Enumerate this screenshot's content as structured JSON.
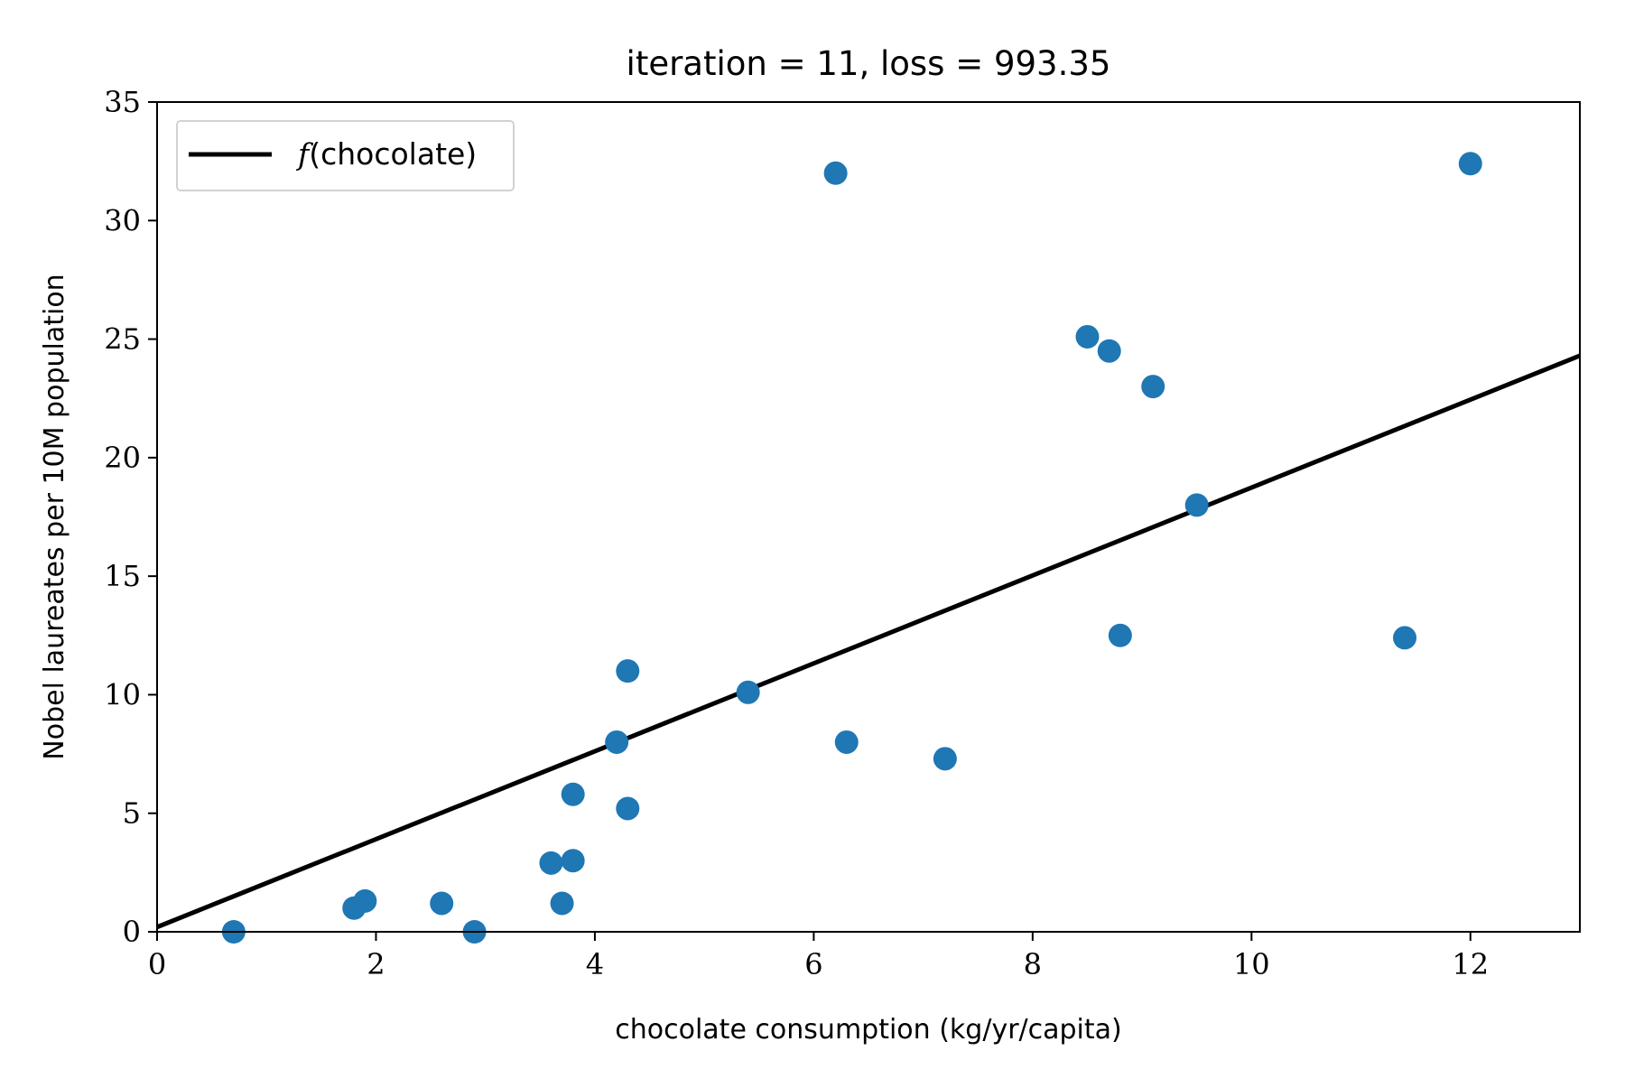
{
  "chart_data": {
    "type": "scatter",
    "title": "iteration = 11, loss = 993.35",
    "xlabel": "chocolate consumption (kg/yr/capita)",
    "ylabel": "Nobel laureates per 10M population",
    "xlim": [
      0,
      13
    ],
    "ylim": [
      0,
      35
    ],
    "xticks": [
      0,
      2,
      4,
      6,
      8,
      10,
      12
    ],
    "yticks": [
      0,
      5,
      10,
      15,
      20,
      25,
      30,
      35
    ],
    "grid": false,
    "legend_position": "top-left",
    "legend": {
      "func": "f",
      "label": "(chocolate)"
    },
    "points": [
      {
        "x": 0.7,
        "y": 0.0
      },
      {
        "x": 1.8,
        "y": 1.0
      },
      {
        "x": 1.9,
        "y": 1.3
      },
      {
        "x": 2.6,
        "y": 1.2
      },
      {
        "x": 2.9,
        "y": 0.0
      },
      {
        "x": 3.6,
        "y": 2.9
      },
      {
        "x": 3.7,
        "y": 1.2
      },
      {
        "x": 3.8,
        "y": 3.0
      },
      {
        "x": 3.8,
        "y": 5.8
      },
      {
        "x": 4.2,
        "y": 8.0
      },
      {
        "x": 4.3,
        "y": 5.2
      },
      {
        "x": 4.3,
        "y": 11.0
      },
      {
        "x": 5.4,
        "y": 10.1
      },
      {
        "x": 6.2,
        "y": 32.0
      },
      {
        "x": 6.3,
        "y": 8.0
      },
      {
        "x": 7.2,
        "y": 7.3
      },
      {
        "x": 8.5,
        "y": 25.1
      },
      {
        "x": 8.7,
        "y": 24.5
      },
      {
        "x": 8.8,
        "y": 12.5
      },
      {
        "x": 9.1,
        "y": 23.0
      },
      {
        "x": 9.5,
        "y": 18.0
      },
      {
        "x": 11.4,
        "y": 12.4
      },
      {
        "x": 12.0,
        "y": 32.4
      }
    ],
    "line": {
      "x": [
        0,
        13
      ],
      "y": [
        0.2,
        24.3
      ]
    },
    "colors": {
      "points": "#1f77b4",
      "line": "#000000"
    }
  }
}
